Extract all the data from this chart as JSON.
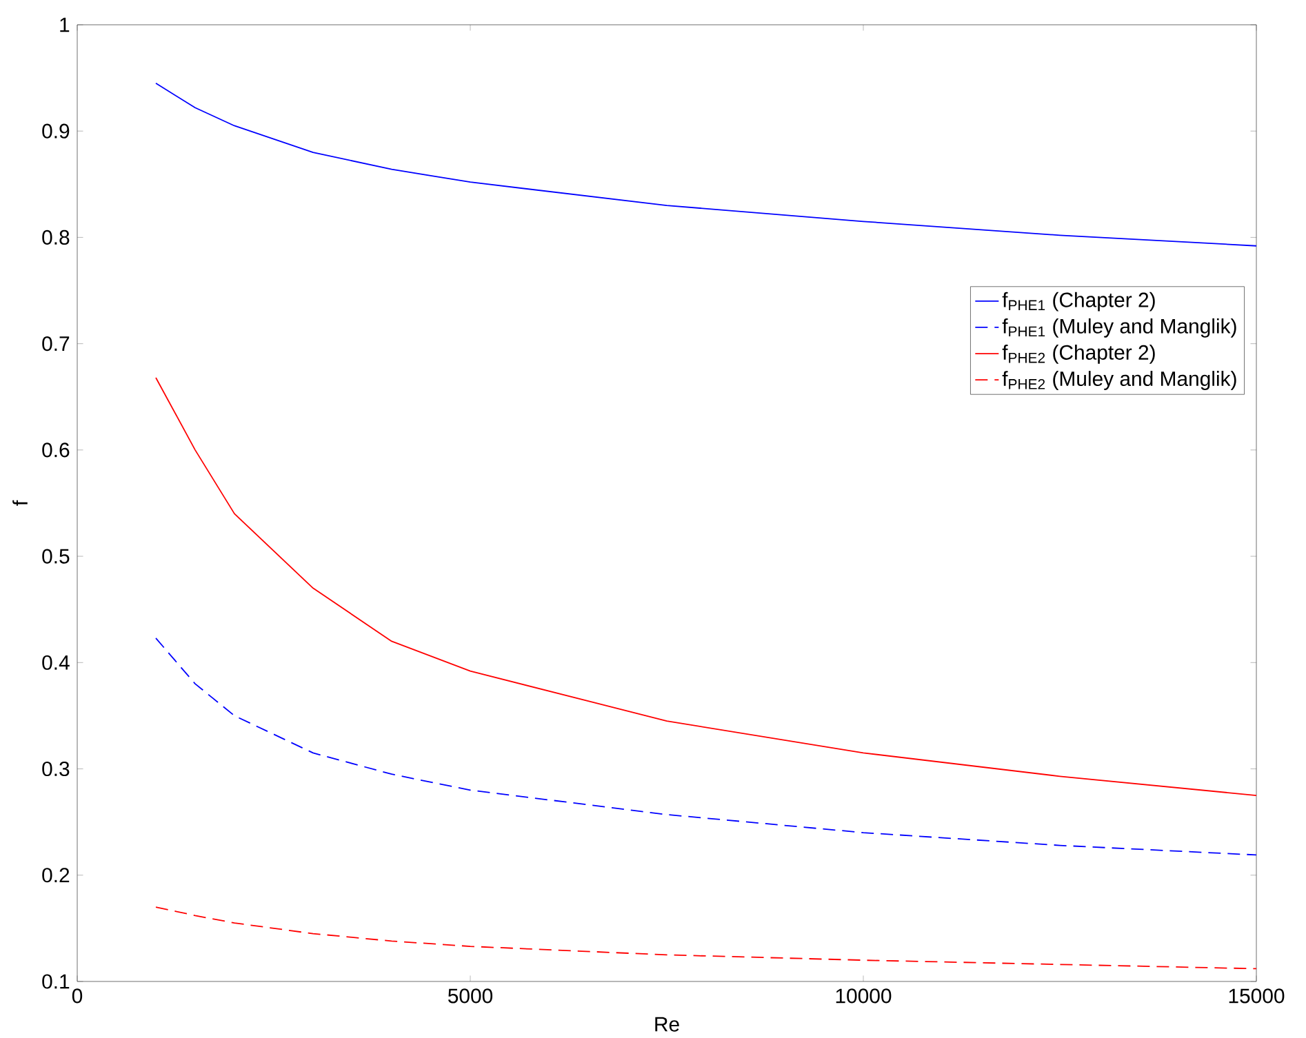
{
  "chart_data": {
    "type": "line",
    "xlabel": "Re",
    "ylabel": "f",
    "xlim": [
      0,
      15000
    ],
    "ylim": [
      0.1,
      1
    ],
    "xticks": [
      0,
      5000,
      10000,
      15000
    ],
    "yticks": [
      0.1,
      0.2,
      0.3,
      0.4,
      0.5,
      0.6,
      0.7,
      0.8,
      0.9,
      1
    ],
    "x": [
      1000,
      1500,
      2000,
      3000,
      4000,
      5000,
      7500,
      10000,
      12500,
      15000
    ],
    "legend": "right",
    "series": [
      {
        "name": "f$_{PHE1}$ (Chapter 2)",
        "color": "#0000ff",
        "line_style": "solid",
        "values": [
          0.945,
          0.922,
          0.905,
          0.88,
          0.864,
          0.852,
          0.83,
          0.815,
          0.802,
          0.792
        ]
      },
      {
        "name": "f$_{PHE1}$ (Muley and Manglik)",
        "color": "#0000ff",
        "line_style": "dashed",
        "values": [
          0.423,
          0.38,
          0.35,
          0.315,
          0.295,
          0.28,
          0.257,
          0.24,
          0.228,
          0.219
        ]
      },
      {
        "name": "f$_{PHE2}$ (Chapter 2)",
        "color": "#ff0000",
        "line_style": "solid",
        "values": [
          0.668,
          0.6,
          0.54,
          0.47,
          0.42,
          0.392,
          0.345,
          0.315,
          0.293,
          0.275
        ]
      },
      {
        "name": "f$_{PHE2}$ (Muley and Manglik)",
        "color": "#ff0000",
        "line_style": "dashed",
        "values": [
          0.17,
          0.162,
          0.155,
          0.145,
          0.138,
          0.133,
          0.125,
          0.12,
          0.116,
          0.112
        ]
      }
    ]
  }
}
